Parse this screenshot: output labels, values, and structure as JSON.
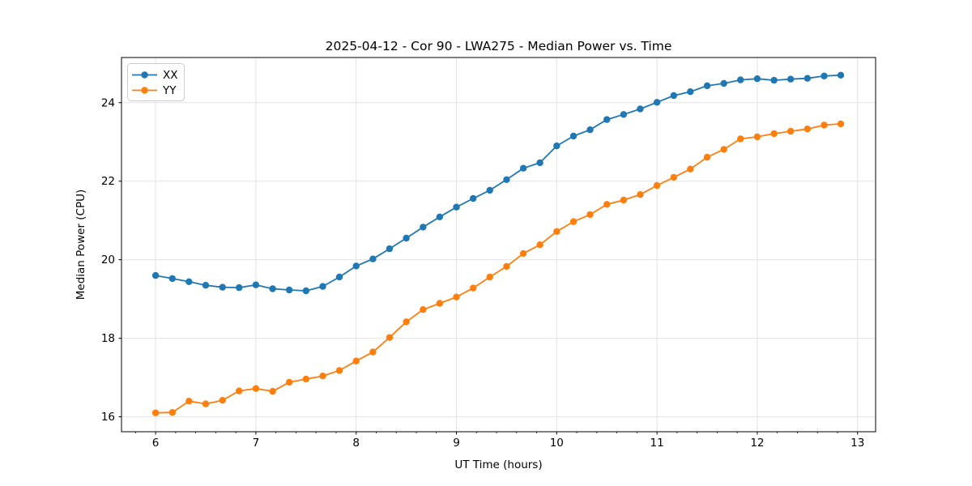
{
  "chart_data": {
    "type": "line",
    "title": "2025-04-12 - Cor 90 - LWA275 - Median Power vs. Time",
    "xlabel": "UT Time (hours)",
    "ylabel": "Median Power (CPU)",
    "xlim": [
      5.66,
      13.18
    ],
    "ylim": [
      15.62,
      25.15
    ],
    "x_ticks": [
      6,
      7,
      8,
      9,
      10,
      11,
      12,
      13
    ],
    "y_ticks": [
      16,
      18,
      20,
      22,
      24
    ],
    "x_minor_tick_step": 0.2,
    "grid": true,
    "legend_position": "upper-left",
    "marker": "circle",
    "x": [
      6.0,
      6.167,
      6.333,
      6.5,
      6.667,
      6.833,
      7.0,
      7.167,
      7.333,
      7.5,
      7.667,
      7.833,
      8.0,
      8.167,
      8.333,
      8.5,
      8.667,
      8.833,
      9.0,
      9.167,
      9.333,
      9.5,
      9.667,
      9.833,
      10.0,
      10.167,
      10.333,
      10.5,
      10.667,
      10.833,
      11.0,
      11.167,
      11.333,
      11.5,
      11.667,
      11.833,
      12.0,
      12.167,
      12.333,
      12.5,
      12.667,
      12.833
    ],
    "series": [
      {
        "name": "XX",
        "color": "#1f77b4",
        "values": [
          19.6,
          19.52,
          19.44,
          19.35,
          19.3,
          19.29,
          19.36,
          19.26,
          19.23,
          19.21,
          19.32,
          19.56,
          19.84,
          20.02,
          20.28,
          20.55,
          20.83,
          21.09,
          21.34,
          21.56,
          21.77,
          22.04,
          22.33,
          22.47,
          22.9,
          23.15,
          23.31,
          23.57,
          23.7,
          23.84,
          24.01,
          24.18,
          24.28,
          24.43,
          24.49,
          24.58,
          24.61,
          24.57,
          24.6,
          24.62,
          24.68,
          24.7
        ]
      },
      {
        "name": "YY",
        "color": "#ff7f0e",
        "values": [
          16.1,
          16.11,
          16.4,
          16.33,
          16.42,
          16.66,
          16.72,
          16.65,
          16.88,
          16.96,
          17.04,
          17.18,
          17.42,
          17.65,
          18.02,
          18.42,
          18.73,
          18.89,
          19.05,
          19.28,
          19.56,
          19.83,
          20.16,
          20.38,
          20.72,
          20.97,
          21.15,
          21.41,
          21.52,
          21.66,
          21.89,
          22.1,
          22.31,
          22.61,
          22.81,
          23.08,
          23.13,
          23.21,
          23.27,
          23.33,
          23.43,
          23.46
        ]
      }
    ],
    "style": {
      "grid_color": "#e2e2e2",
      "spine_color": "#000000",
      "background": "#ffffff",
      "line_width": 1.8,
      "marker_radius": 4.2
    }
  }
}
